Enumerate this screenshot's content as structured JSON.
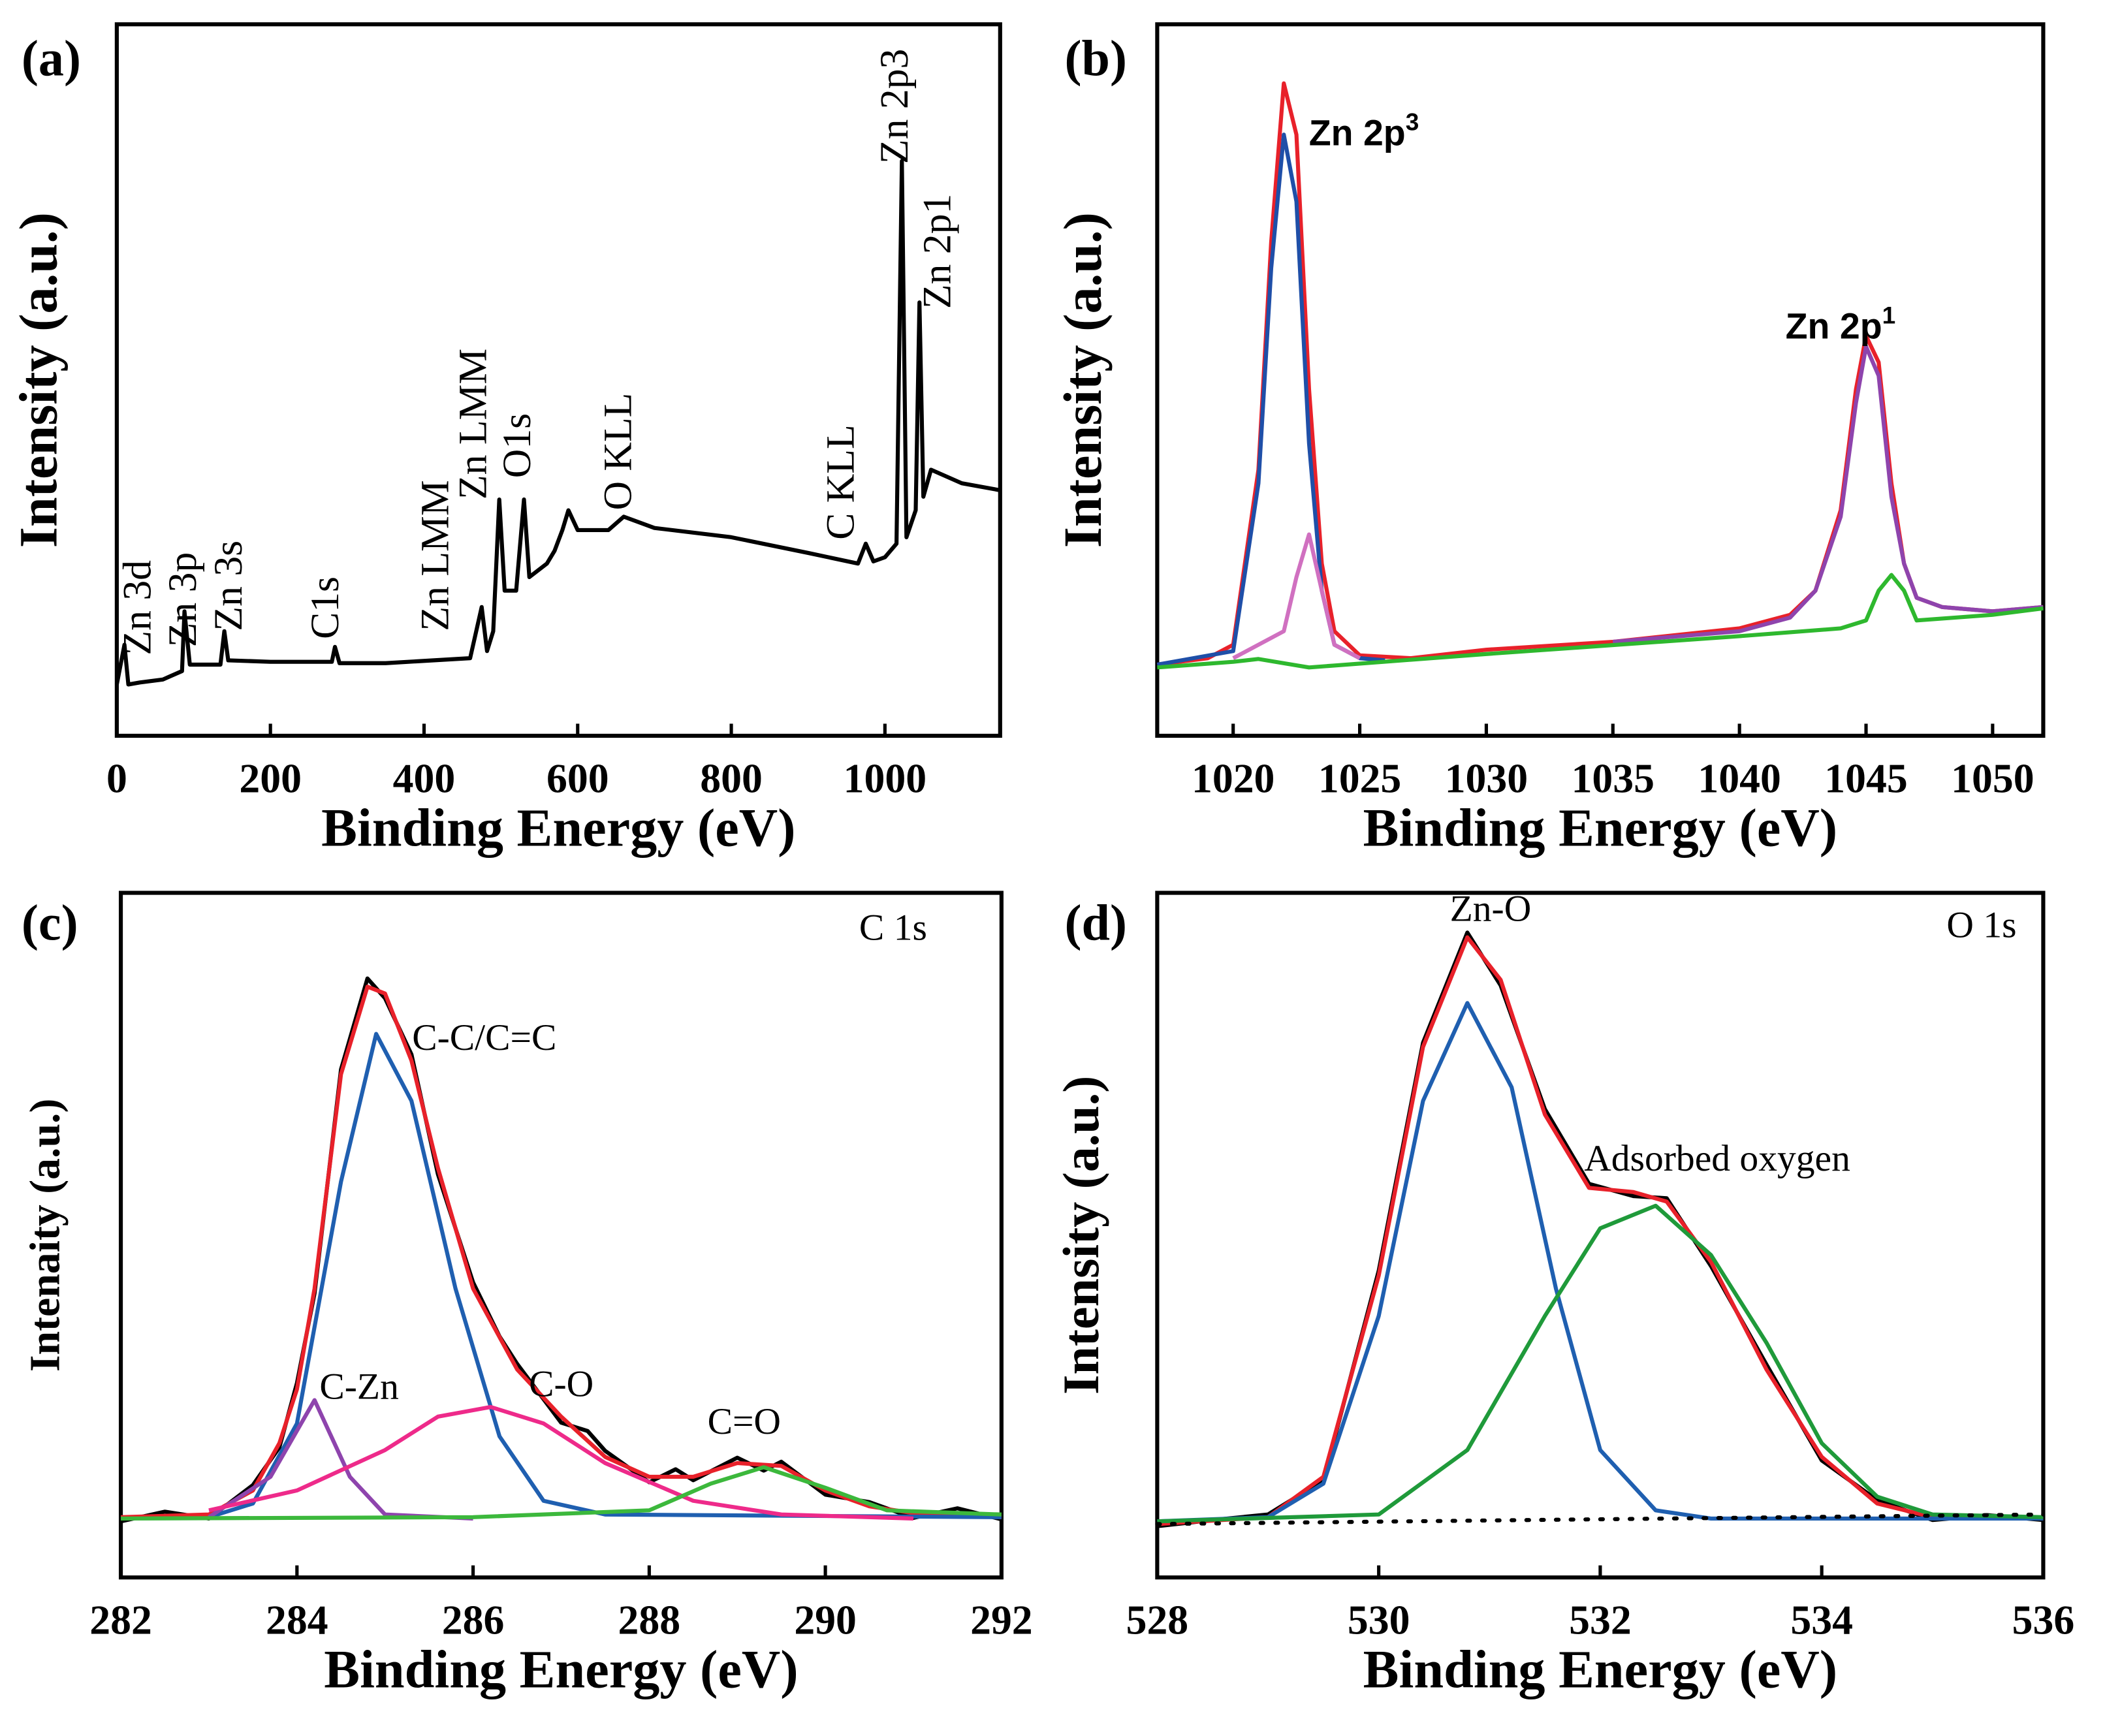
{
  "chart_data": [
    {
      "type": "line",
      "panel_label": "(a)",
      "xlabel": "Binding Energy (eV)",
      "ylabel": "Intensity (a.u.)",
      "xlim": [
        0,
        1150
      ],
      "xticks": [
        0,
        200,
        400,
        600,
        800,
        1000
      ],
      "ylim": [
        0,
        100
      ],
      "annotations": [
        "Zn 3d",
        "Zn 3p",
        "Zn 3s",
        "C1s",
        "Zn LMM",
        "Zn LMM",
        "O1s",
        "O KLL",
        "C KLL",
        "Zn 2p3",
        "Zn 2p1"
      ],
      "series": [
        {
          "color": "#000000",
          "style": "solid",
          "x": [
            0,
            10,
            15,
            30,
            60,
            85,
            88,
            95,
            110,
            135,
            140,
            145,
            200,
            280,
            284,
            290,
            350,
            460,
            475,
            482,
            490,
            498,
            505,
            520,
            530,
            537,
            560,
            570,
            580,
            588,
            600,
            640,
            660,
            700,
            800,
            900,
            965,
            975,
            985,
            1000,
            1015,
            1022,
            1028,
            1040,
            1045,
            1050,
            1060,
            1100,
            1150
          ],
          "values": [
            7.2,
            12.8,
            7.2,
            7.5,
            7.9,
            9.1,
            17.5,
            10,
            10,
            10,
            14.7,
            10.6,
            10.4,
            10.4,
            12.5,
            10.2,
            10.2,
            10.9,
            18.1,
            11.9,
            14.7,
            33.2,
            20.4,
            20.4,
            33.2,
            22.3,
            24.2,
            26,
            28.9,
            31.7,
            28.9,
            28.9,
            30.8,
            29.2,
            27.9,
            25.7,
            24.2,
            27,
            24.5,
            25.1,
            27,
            80.8,
            27.9,
            31.7,
            60.9,
            33.6,
            37.4,
            35.5,
            34.5
          ]
        }
      ]
    },
    {
      "type": "line",
      "panel_label": "(b)",
      "xlabel": "Binding Energy (eV)",
      "ylabel": "Intensity (a.u.)",
      "xlim": [
        1017,
        1052
      ],
      "xticks": [
        1020,
        1025,
        1030,
        1035,
        1040,
        1045,
        1050
      ],
      "ylim": [
        0,
        100
      ],
      "annotations": [
        {
          "text": "Zn 2p",
          "sup": "3"
        },
        {
          "text": "Zn 2p",
          "sup": "1"
        }
      ],
      "series": [
        {
          "color": "#e8212a",
          "style": "solid",
          "x": [
            1017,
            1019,
            1020,
            1021,
            1021.5,
            1022,
            1022.5,
            1023,
            1023.5,
            1024,
            1025,
            1027,
            1030,
            1035,
            1040,
            1042,
            1043,
            1044,
            1044.6,
            1045,
            1045.5,
            1046,
            1046.5,
            1047,
            1048,
            1050,
            1052
          ],
          "values": [
            10,
            10.9,
            12.8,
            37.4,
            69.4,
            91.7,
            84.5,
            48.7,
            24.2,
            14.7,
            11.3,
            10.9,
            12.1,
            13.2,
            15.1,
            17,
            20.4,
            31.7,
            48.7,
            56.2,
            52.5,
            35.5,
            24.2,
            19.4,
            18.1,
            17.5,
            18.1
          ]
        },
        {
          "color": "#1f4fa8",
          "style": "solid",
          "x": [
            1017,
            1020,
            1021,
            1021.5,
            1022,
            1022.5,
            1023,
            1023.5,
            1024,
            1025,
            1026
          ],
          "values": [
            10,
            11.9,
            35.5,
            65.7,
            84.5,
            75.1,
            41.1,
            20.4,
            12.8,
            10.9,
            10.6
          ]
        },
        {
          "color": "#d070c0",
          "style": "solid",
          "x": [
            1020,
            1022,
            1022.5,
            1023,
            1023.5,
            1024,
            1025
          ],
          "values": [
            10.9,
            14.7,
            22.3,
            28.3,
            20.4,
            12.8,
            10.9
          ]
        },
        {
          "color": "#8e44ad",
          "style": "solid",
          "x": [
            1035,
            1040,
            1042,
            1043,
            1044,
            1044.6,
            1045,
            1045.5,
            1046,
            1046.5,
            1047,
            1048,
            1050,
            1052
          ],
          "values": [
            13.2,
            14.7,
            16.6,
            20.4,
            30.8,
            46.8,
            54.7,
            50.6,
            33.6,
            24.2,
            19.4,
            18.1,
            17.5,
            18.1
          ]
        },
        {
          "color": "#2eb82e",
          "style": "solid",
          "x": [
            1017,
            1020,
            1021,
            1023,
            1030,
            1040,
            1044,
            1045,
            1045.5,
            1046,
            1046.5,
            1047,
            1050,
            1052
          ],
          "values": [
            9.6,
            10.4,
            10.8,
            9.6,
            11.5,
            14,
            15.1,
            16.2,
            20.4,
            22.6,
            20.4,
            16.2,
            17,
            17.9
          ]
        }
      ]
    },
    {
      "type": "line",
      "panel_label": "(c)",
      "xlabel": "Binding Energy (eV)",
      "ylabel": "Intenaity (a.u.)",
      "xlim": [
        282,
        292
      ],
      "xticks": [
        282,
        284,
        286,
        288,
        290,
        292
      ],
      "ylim": [
        0,
        100
      ],
      "annotations": [
        "C 1s",
        "C-C/C=C",
        "C-Zn",
        "C-O",
        "C=O"
      ],
      "series": [
        {
          "color": "#000000",
          "style": "solid",
          "x": [
            282,
            282.5,
            283,
            283.5,
            283.8,
            284,
            284.2,
            284.5,
            284.8,
            285,
            285.3,
            285.6,
            286,
            286.3,
            286.5,
            287,
            287.3,
            287.5,
            288,
            288.3,
            288.5,
            289,
            289.3,
            289.5,
            290,
            290.5,
            291,
            291.5,
            292
          ],
          "values": [
            8.2,
            9.6,
            8.6,
            13.5,
            19,
            28.4,
            41.5,
            74.2,
            87.5,
            84.6,
            76.4,
            58.9,
            43.1,
            35.2,
            31.2,
            22.6,
            21.4,
            18.5,
            13.9,
            15.8,
            14.2,
            17.5,
            15.6,
            16.9,
            12.1,
            11,
            8.7,
            10.1,
            8.5
          ]
        },
        {
          "color": "#e8212a",
          "style": "solid",
          "x": [
            282,
            283,
            283.5,
            283.8,
            284,
            284.2,
            284.5,
            284.8,
            285,
            285.3,
            285.6,
            286,
            286.5,
            287,
            287.5,
            288,
            288.5,
            289,
            289.5,
            290,
            290.5,
            291,
            292
          ],
          "values": [
            8.8,
            9.2,
            12.7,
            19.6,
            27.5,
            42.2,
            73.5,
            86.3,
            85.3,
            75.5,
            59.8,
            42.2,
            30.4,
            23.5,
            17.6,
            14.7,
            14.7,
            16.7,
            16.3,
            12.7,
            10.4,
            9.4,
            8.8
          ]
        },
        {
          "color": "#1f5fb0",
          "style": "solid",
          "x": [
            283,
            283.5,
            284,
            284.5,
            284.9,
            285.3,
            285.8,
            286.3,
            286.8,
            287.5,
            292
          ],
          "values": [
            8.8,
            10.8,
            22.5,
            57.8,
            79.4,
            69.6,
            42.2,
            20.6,
            11.2,
            9.2,
            8.8
          ]
        },
        {
          "color": "#8e44ad",
          "style": "solid",
          "x": [
            283,
            283.7,
            284.2,
            284.6,
            285,
            286
          ],
          "values": [
            8.8,
            14.7,
            25.9,
            14.7,
            9.2,
            8.6
          ]
        },
        {
          "color": "#ee2a8a",
          "style": "solid",
          "x": [
            283,
            284,
            285,
            285.6,
            286.2,
            286.8,
            287.5,
            288.5,
            289.5,
            291
          ],
          "values": [
            9.8,
            12.7,
            18.6,
            23.5,
            24.9,
            22.5,
            16.7,
            11.2,
            9.2,
            8.6
          ]
        },
        {
          "color": "#3cb83c",
          "style": "solid",
          "x": [
            282,
            286,
            288,
            288.7,
            289.3,
            290,
            290.7,
            292
          ],
          "values": [
            8.6,
            8.8,
            9.8,
            13.7,
            16.1,
            13.1,
            9.8,
            9.2
          ]
        }
      ]
    },
    {
      "type": "line",
      "panel_label": "(d)",
      "xlabel": "Binding Energy (eV)",
      "ylabel": "Intensity (a.u.)",
      "xlim": [
        528,
        536
      ],
      "xticks": [
        528,
        530,
        532,
        534,
        536
      ],
      "ylim": [
        0,
        100
      ],
      "annotations": [
        "Zn-O",
        "O 1s",
        "Adsorbed oxygen"
      ],
      "series": [
        {
          "color": "#000000",
          "style": "solid",
          "x": [
            528,
            528.5,
            529,
            529.5,
            530,
            530.4,
            530.8,
            531.1,
            531.5,
            531.9,
            532.3,
            532.6,
            533,
            533.5,
            534,
            534.5,
            535,
            535.5,
            536
          ],
          "values": [
            7.5,
            8.4,
            9.2,
            14.2,
            44.8,
            78.1,
            94.2,
            86.5,
            68.4,
            57.5,
            55.7,
            55.4,
            45.5,
            31.1,
            17.1,
            11.3,
            8.4,
            9.1,
            8.4
          ]
        },
        {
          "color": "#e8212a",
          "style": "solid",
          "x": [
            528,
            529,
            529.5,
            530,
            530.4,
            530.8,
            531.1,
            531.5,
            531.9,
            532.3,
            532.6,
            533,
            533.5,
            534,
            534.5,
            535,
            536
          ],
          "values": [
            7.8,
            8.8,
            14.7,
            44.1,
            77.5,
            93.5,
            87.3,
            67.6,
            56.9,
            56.3,
            54.9,
            46.1,
            30.4,
            17.6,
            10.8,
            8.8,
            8.6
          ]
        },
        {
          "color": "#1f5fb0",
          "style": "solid",
          "x": [
            528,
            529,
            529.5,
            530,
            530.4,
            530.8,
            531.2,
            531.6,
            532,
            532.5,
            533,
            536
          ],
          "values": [
            8.2,
            8.8,
            13.7,
            38.2,
            69.6,
            83.9,
            71.6,
            42.2,
            18.6,
            9.8,
            8.6,
            8.6
          ]
        },
        {
          "color": "#1f9a3a",
          "style": "solid",
          "x": [
            528,
            530,
            530.8,
            531.5,
            532,
            532.5,
            533,
            533.5,
            534,
            534.5,
            535,
            536
          ],
          "values": [
            8.2,
            9.2,
            18.6,
            38.2,
            51,
            54.3,
            47.1,
            34.3,
            19.6,
            11.8,
            9.2,
            8.8
          ]
        },
        {
          "color": "#000000",
          "style": "dotted",
          "x": [
            528,
            536
          ],
          "values": [
            7.8,
            9.2
          ]
        }
      ]
    }
  ]
}
